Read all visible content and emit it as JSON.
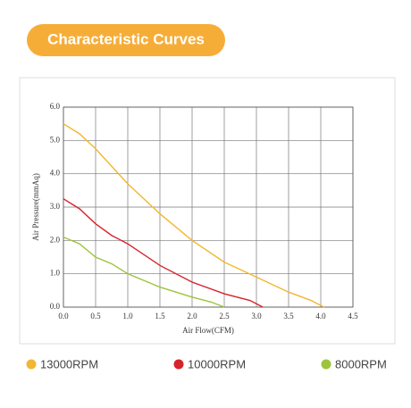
{
  "header": {
    "title": "Characteristic Curves"
  },
  "chart_data": {
    "type": "line",
    "xlabel": "Air Flow(CFM)",
    "ylabel": "Air Pressure(mmAq)",
    "xlim": [
      0,
      4.5
    ],
    "ylim": [
      0,
      6
    ],
    "xticks": [
      {
        "value": 0,
        "label": "0.0"
      },
      {
        "value": 0.5,
        "label": "0.5"
      },
      {
        "value": 1,
        "label": "1.0"
      },
      {
        "value": 1.5,
        "label": "1.5"
      },
      {
        "value": 2,
        "label": "2.0"
      },
      {
        "value": 2.5,
        "label": "2.5"
      },
      {
        "value": 3,
        "label": "3.0"
      },
      {
        "value": 3.5,
        "label": "3.5"
      },
      {
        "value": 4,
        "label": "4.0"
      },
      {
        "value": 4.5,
        "label": "4.5"
      }
    ],
    "yticks": [
      {
        "value": 0,
        "label": "0.0"
      },
      {
        "value": 1,
        "label": "1.0"
      },
      {
        "value": 2,
        "label": "2.0"
      },
      {
        "value": 3,
        "label": "3.0"
      },
      {
        "value": 4,
        "label": "4.0"
      },
      {
        "value": 5,
        "label": "5.0"
      },
      {
        "value": 6,
        "label": "6.0"
      }
    ],
    "grid": true,
    "series": [
      {
        "name": "13000RPM",
        "color": "#f2b630",
        "x": [
          0,
          0.25,
          0.5,
          1,
          1.5,
          2,
          2.5,
          3,
          3.5,
          3.85,
          4.05
        ],
        "values": [
          5.5,
          5.2,
          4.75,
          3.7,
          2.8,
          2.0,
          1.35,
          0.9,
          0.45,
          0.2,
          0
        ]
      },
      {
        "name": "10000RPM",
        "color": "#d7232b",
        "x": [
          0,
          0.25,
          0.5,
          0.75,
          1,
          1.5,
          2,
          2.5,
          2.9,
          3.1
        ],
        "values": [
          3.25,
          2.95,
          2.5,
          2.15,
          1.9,
          1.25,
          0.75,
          0.4,
          0.2,
          0
        ]
      },
      {
        "name": "8000RPM",
        "color": "#9dc43b",
        "x": [
          0,
          0.25,
          0.5,
          0.75,
          1,
          1.5,
          2,
          2.3,
          2.5
        ],
        "values": [
          2.1,
          1.9,
          1.5,
          1.3,
          1.0,
          0.6,
          0.3,
          0.15,
          0
        ]
      }
    ]
  }
}
